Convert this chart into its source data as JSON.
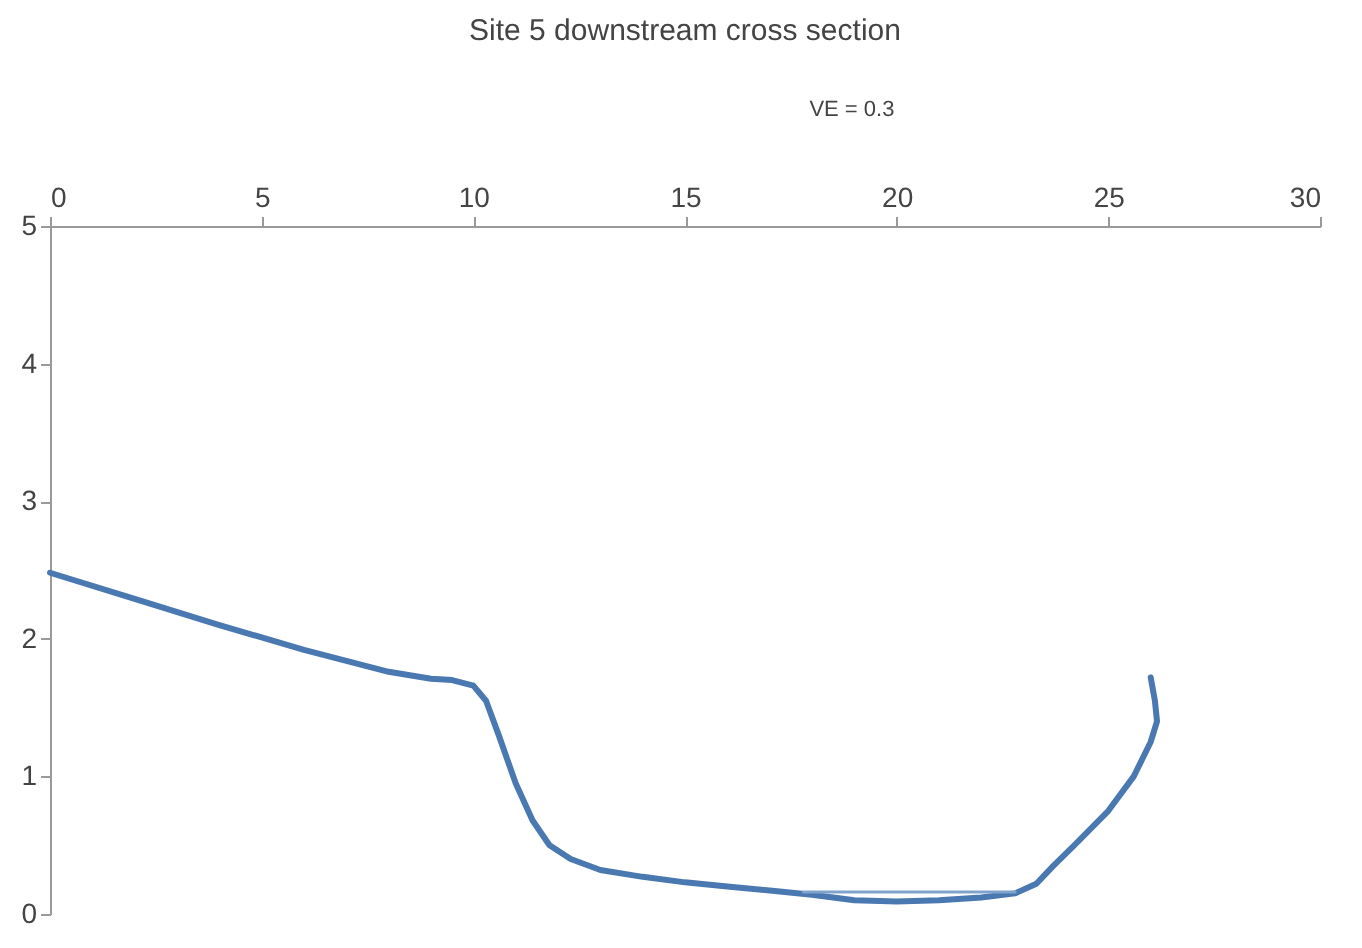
{
  "chart_data": {
    "type": "line",
    "title": "Site 5 downstream cross section",
    "annotations": [
      "VE = 0.3"
    ],
    "xlim": [
      0,
      30
    ],
    "xticks": [
      0,
      5,
      10,
      15,
      20,
      25,
      30
    ],
    "ylim": [
      0,
      5
    ],
    "yticks": [
      0,
      1,
      2,
      3,
      4,
      5
    ],
    "grid": false,
    "marker": "none",
    "line_style": "solid",
    "series": [
      {
        "color": "#4a78b0",
        "x": [
          0,
          2,
          4,
          6,
          8,
          9,
          9.5,
          10,
          10.3,
          10.6,
          11,
          11.4,
          11.8,
          12.3,
          13,
          14,
          15,
          16,
          17,
          18,
          19,
          20,
          21,
          22,
          22.8,
          23.3,
          23.7,
          24.2,
          25,
          25.6,
          26,
          26.15,
          26.1,
          26
        ],
        "values": [
          2.48,
          2.29,
          2.1,
          1.92,
          1.76,
          1.71,
          1.7,
          1.66,
          1.55,
          1.3,
          0.95,
          0.68,
          0.5,
          0.4,
          0.32,
          0.27,
          0.23,
          0.2,
          0.17,
          0.14,
          0.1,
          0.09,
          0.1,
          0.12,
          0.15,
          0.22,
          0.35,
          0.5,
          0.75,
          1.0,
          1.25,
          1.4,
          1.55,
          1.72
        ]
      },
      {
        "color": "#7fa3cc",
        "x": [
          17.8,
          22.8
        ],
        "values": [
          0.16,
          0.16
        ]
      }
    ]
  }
}
